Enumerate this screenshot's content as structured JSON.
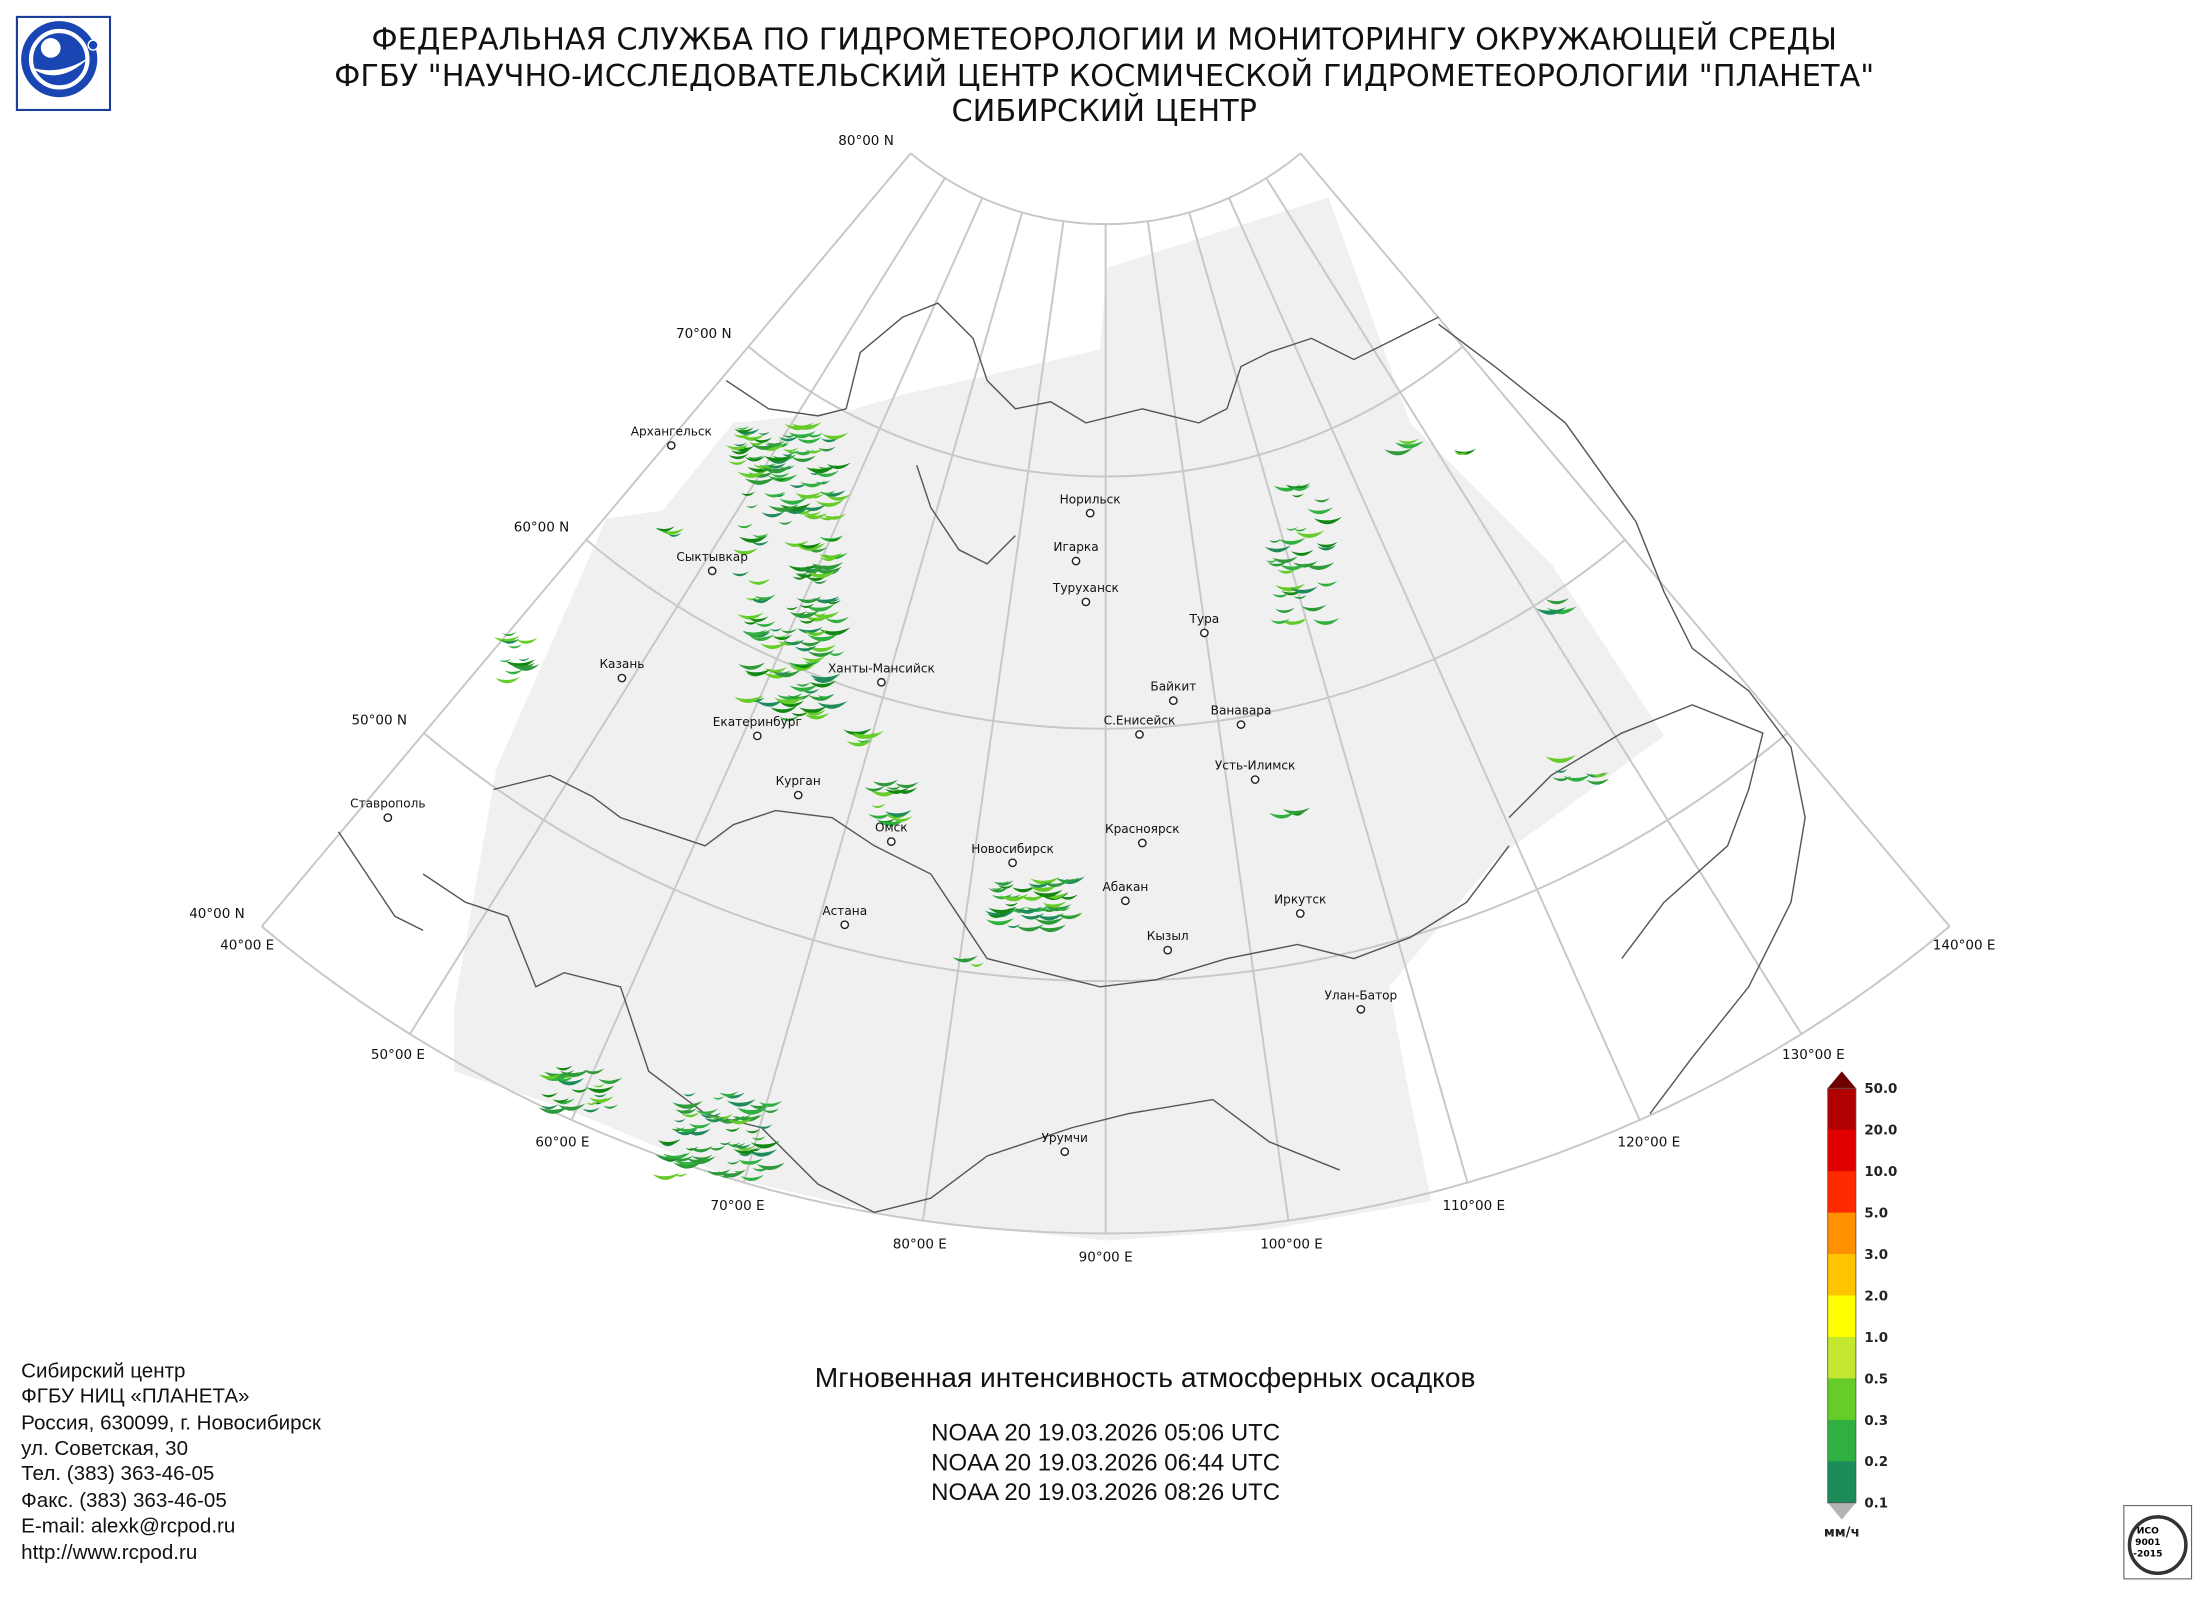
{
  "header": {
    "lines": [
      "ФЕДЕРАЛЬНАЯ СЛУЖБА ПО ГИДРОМЕТЕОРОЛОГИИ И МОНИТОРИНГУ ОКРУЖАЮЩЕЙ СРЕДЫ",
      "ФГБУ \"НАУЧНО-ИССЛЕДОВАТЕЛЬСКИЙ ЦЕНТР КОСМИЧЕСКОЙ ГИДРОМЕТЕОРОЛОГИИ \"ПЛАНЕТА\"",
      "СИБИРСКИЙ ЦЕНТР"
    ]
  },
  "graticule": {
    "parallels": [
      {
        "lat": 80,
        "label": "80°00 N"
      },
      {
        "lat": 70,
        "label": "70°00 N"
      },
      {
        "lat": 60,
        "label": "60°00 N"
      },
      {
        "lat": 50,
        "label": "50°00 N"
      },
      {
        "lat": 40,
        "label": "40°00 N"
      }
    ],
    "meridians": [
      {
        "lon": 40,
        "label": "40°00 E"
      },
      {
        "lon": 50,
        "label": "50°00 E"
      },
      {
        "lon": 60,
        "label": "60°00 E"
      },
      {
        "lon": 70,
        "label": "70°00 E"
      },
      {
        "lon": 80,
        "label": "80°00 E"
      },
      {
        "lon": 90,
        "label": "90°00 E"
      },
      {
        "lon": 100,
        "label": "100°00 E"
      },
      {
        "lon": 110,
        "label": "110°00 E"
      },
      {
        "lon": 120,
        "label": "120°00 E"
      },
      {
        "lon": 130,
        "label": "130°00 E"
      },
      {
        "lon": 140,
        "label": "140°00 E"
      }
    ]
  },
  "cities": [
    "Архангельск",
    "Сыктывкар",
    "Казань",
    "Ханты-Мансийск",
    "Екатеринбург",
    "Курган",
    "Ставрополь",
    "Омск",
    "Новосибирск",
    "Астана",
    "Норильск",
    "Игарка",
    "Туруханск",
    "Тура",
    "Байкит",
    "С.Енисейск",
    "Ванавара",
    "Усть-Илимск",
    "Красноярск",
    "Абакан",
    "Кызыл",
    "Иркутск",
    "Улан-Батор",
    "Урумчи"
  ],
  "legend": {
    "labels": [
      "50.0",
      "20.0",
      "10.0",
      "5.0",
      "3.0",
      "2.0",
      "1.0",
      "0.5",
      "0.3",
      "0.2",
      "0.1"
    ],
    "unit": "мм/ч",
    "colors": [
      "#b00000",
      "#e00000",
      "#ff2a00",
      "#ff9000",
      "#ffc400",
      "#ffff00",
      "#c4e830",
      "#66cc2a",
      "#30b040",
      "#1e8c5a",
      "#128812"
    ],
    "over_color": "#6e0000",
    "under_color": "#b4b4b4"
  },
  "footer": {
    "contact": [
      "Сибирский центр",
      "ФГБУ НИЦ «ПЛАНЕТА»",
      "Россия, 630099, г. Новосибирск",
      "ул. Советская, 30",
      "Тел. (383) 363-46-05",
      "Факс. (383) 363-46-05",
      "E-mail: alexk@rcpod.ru",
      "http://www.rcpod.ru"
    ],
    "title": "Мгновенная интенсивность атмосферных осадков",
    "passes": [
      "NOAA 20 19.03.2026  05:06 UTC",
      "NOAA 20 19.03.2026  06:44 UTC",
      "NOAA 20 19.03.2026  08:26 UTC"
    ]
  },
  "iso_logo": [
    "ИСО",
    "9001",
    "-2015"
  ]
}
